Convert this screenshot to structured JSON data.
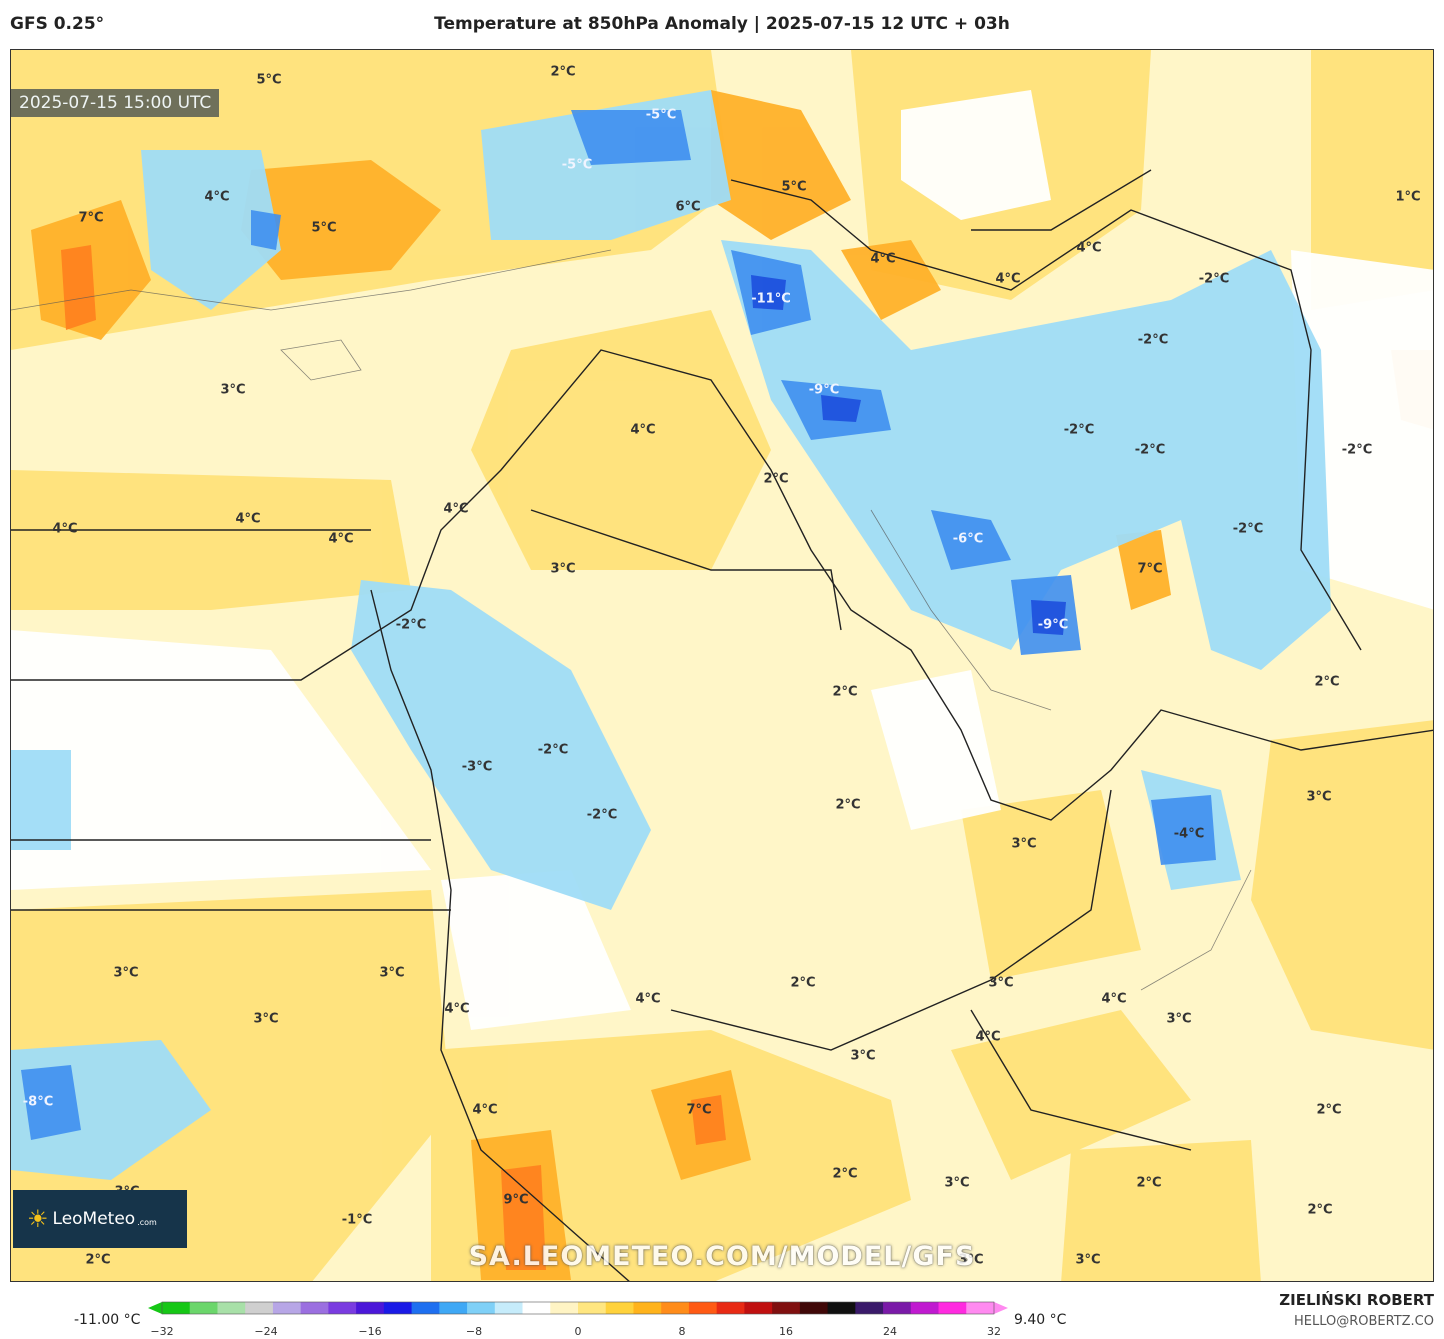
{
  "header": {
    "model": "GFS 0.25°",
    "title": "Temperature at 850hPa Anomaly | 2025-07-15 12 UTC + 03h"
  },
  "map": {
    "valid_time": "2025-07-15 15:00 UTC",
    "watermark": "SA.LEOMETEO.COM/MODEL/GFS",
    "logo": {
      "name": "LeoMeteo",
      "suffix": ".com"
    },
    "labels": [
      {
        "text": "2°C",
        "tone": "warm"
      },
      {
        "text": "5°C",
        "tone": "warm"
      },
      {
        "text": "-5°C",
        "tone": "cold"
      },
      {
        "text": "-5°C",
        "tone": "cold"
      },
      {
        "text": "4°C",
        "tone": "warm"
      },
      {
        "text": "7°C",
        "tone": "warm"
      },
      {
        "text": "5°C",
        "tone": "warm"
      },
      {
        "text": "6°C",
        "tone": "warm"
      },
      {
        "text": "5°C",
        "tone": "warm"
      },
      {
        "text": "1°C",
        "tone": "warm"
      },
      {
        "text": "4°C",
        "tone": "warm"
      },
      {
        "text": "4°C",
        "tone": "warm"
      },
      {
        "text": "4°C",
        "tone": "warm"
      },
      {
        "text": "-2°C",
        "tone": "cold"
      },
      {
        "text": "-11°C",
        "tone": "cold"
      },
      {
        "text": "-2°C",
        "tone": "cold"
      },
      {
        "text": "3°C",
        "tone": "warm"
      },
      {
        "text": "-9°C",
        "tone": "cold"
      },
      {
        "text": "4°C",
        "tone": "warm"
      },
      {
        "text": "-2°C",
        "tone": "cold"
      },
      {
        "text": "-2°C",
        "tone": "cold"
      },
      {
        "text": "-2°C",
        "tone": "cold"
      },
      {
        "text": "2°C",
        "tone": "warm"
      },
      {
        "text": "4°C",
        "tone": "warm"
      },
      {
        "text": "4°C",
        "tone": "warm"
      },
      {
        "text": "4°C",
        "tone": "warm"
      },
      {
        "text": "4°C",
        "tone": "warm"
      },
      {
        "text": "-6°C",
        "tone": "cold"
      },
      {
        "text": "-2°C",
        "tone": "cold"
      },
      {
        "text": "3°C",
        "tone": "warm"
      },
      {
        "text": "7°C",
        "tone": "warm"
      },
      {
        "text": "-2°C",
        "tone": "cold"
      },
      {
        "text": "-9°C",
        "tone": "cold"
      },
      {
        "text": "2°C",
        "tone": "warm"
      },
      {
        "text": "2°C",
        "tone": "warm"
      },
      {
        "text": "-2°C",
        "tone": "cold"
      },
      {
        "text": "-3°C",
        "tone": "cold"
      },
      {
        "text": "3°C",
        "tone": "warm"
      },
      {
        "text": "-2°C",
        "tone": "cold"
      },
      {
        "text": "2°C",
        "tone": "warm"
      },
      {
        "text": "-4°C",
        "tone": "cold"
      },
      {
        "text": "3°C",
        "tone": "warm"
      },
      {
        "text": "3°C",
        "tone": "warm"
      },
      {
        "text": "3°C",
        "tone": "warm"
      },
      {
        "text": "3°C",
        "tone": "warm"
      },
      {
        "text": "2°C",
        "tone": "warm"
      },
      {
        "text": "3°C",
        "tone": "warm"
      },
      {
        "text": "4°C",
        "tone": "warm"
      },
      {
        "text": "4°C",
        "tone": "warm"
      },
      {
        "text": "4°C",
        "tone": "warm"
      },
      {
        "text": "3°C",
        "tone": "warm"
      },
      {
        "text": "4°C",
        "tone": "warm"
      },
      {
        "text": "3°C",
        "tone": "warm"
      },
      {
        "text": "-8°C",
        "tone": "cold"
      },
      {
        "text": "7°C",
        "tone": "warm"
      },
      {
        "text": "4°C",
        "tone": "warm"
      },
      {
        "text": "2°C",
        "tone": "warm"
      },
      {
        "text": "3°C",
        "tone": "warm"
      },
      {
        "text": "3°C",
        "tone": "warm"
      },
      {
        "text": "2°C",
        "tone": "warm"
      },
      {
        "text": "2°C",
        "tone": "warm"
      },
      {
        "text": "9°C",
        "tone": "warm"
      },
      {
        "text": "-1°C",
        "tone": "cold"
      },
      {
        "text": "2°C",
        "tone": "warm"
      },
      {
        "text": "3°C",
        "tone": "warm"
      },
      {
        "text": "3°C",
        "tone": "warm"
      },
      {
        "text": "2°C",
        "tone": "warm"
      }
    ]
  },
  "colorbar": {
    "min_label": "-11.00 °C",
    "max_label": "9.40 °C",
    "range": [
      -32,
      32
    ],
    "ticks": [
      "−32",
      "−24",
      "−16",
      "−8",
      "0",
      "8",
      "16",
      "24",
      "32"
    ],
    "colors": [
      "#16c716",
      "#6bd66b",
      "#a8e0a8",
      "#cfcfcf",
      "#b7a6e6",
      "#9b6fe0",
      "#7a3ce0",
      "#4b17d9",
      "#1a1ae6",
      "#1e6ff0",
      "#3fa8f5",
      "#7fd0f7",
      "#c6ecfb",
      "#ffffff",
      "#fff4c4",
      "#ffe680",
      "#ffd23c",
      "#ffb31c",
      "#ff8c1a",
      "#ff5a14",
      "#e82a14",
      "#c01010",
      "#801010",
      "#400808",
      "#101010",
      "#3a1a6a",
      "#7a1aa8",
      "#c01ad0",
      "#ff2ae0",
      "#ff8af0"
    ]
  },
  "credit": {
    "author": "ZIELIŃSKI ROBERT",
    "email": "HELLO@ROBERTZ.CO"
  }
}
